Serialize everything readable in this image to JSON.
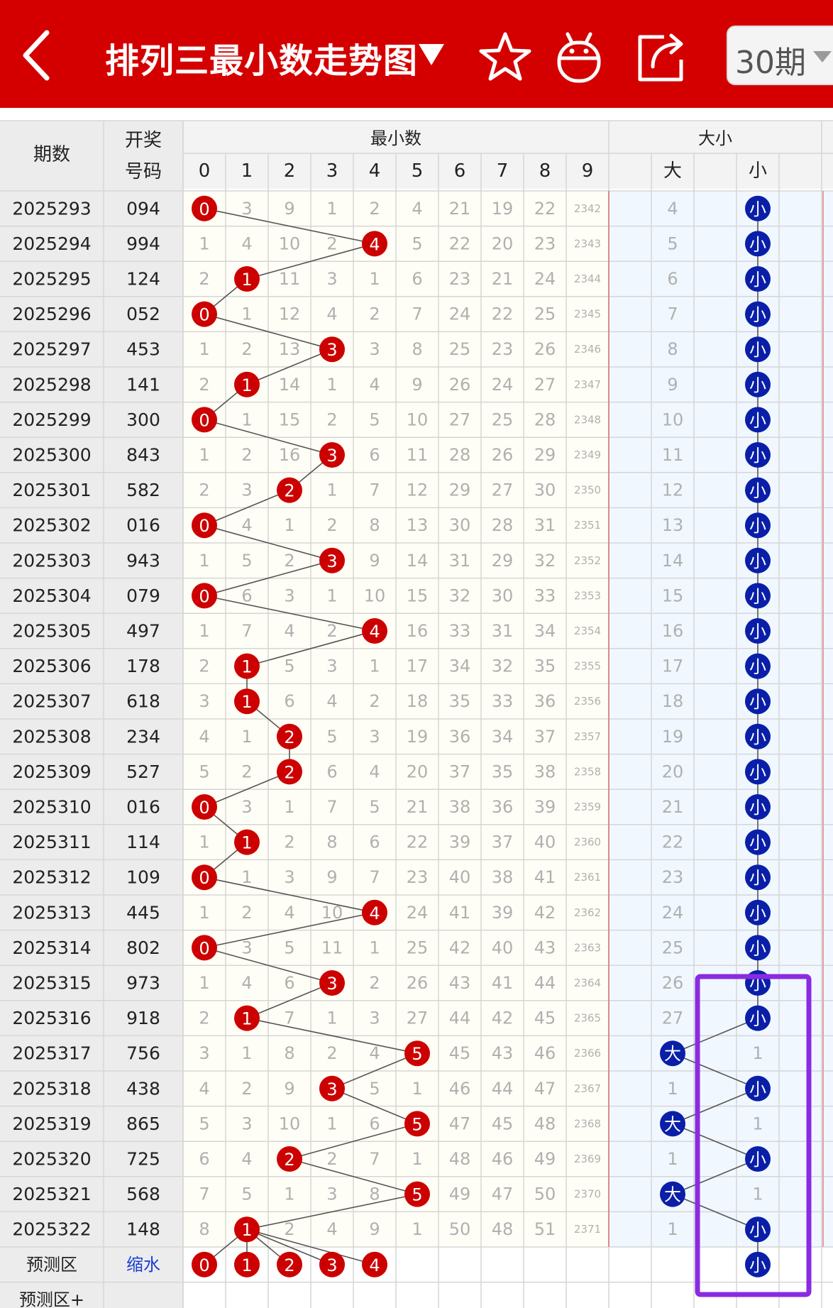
{
  "header": {
    "title": "排列三最小数走势图",
    "title_caret_icon": "triangle-down-icon",
    "back_icon": "chevron-left-icon",
    "icons": [
      "star-icon",
      "robot-icon",
      "share-icon"
    ],
    "period_select": "30期",
    "period_caret_icon": "triangle-down-icon",
    "bg_color": "#d40000"
  },
  "table": {
    "header": {
      "col_period": "期数",
      "col_number": "开奖\n号码",
      "group_min": "最小数",
      "group_size": "大小",
      "digits": [
        "0",
        "1",
        "2",
        "3",
        "4",
        "5",
        "6",
        "7",
        "8",
        "9"
      ],
      "size_labels": [
        "",
        "大",
        "",
        "小",
        ""
      ]
    },
    "rows": [
      {
        "period": "2025293",
        "number": "094",
        "min": 0,
        "miss": [
          "0",
          "3",
          "9",
          "1",
          "2",
          "4",
          "21",
          "19",
          "22",
          "2342"
        ],
        "size": "小",
        "big_miss": "4"
      },
      {
        "period": "2025294",
        "number": "994",
        "min": 4,
        "miss": [
          "1",
          "4",
          "10",
          "2",
          "4",
          "5",
          "22",
          "20",
          "23",
          "2343"
        ],
        "size": "小",
        "big_miss": "5"
      },
      {
        "period": "2025295",
        "number": "124",
        "min": 1,
        "miss": [
          "2",
          "1",
          "11",
          "3",
          "1",
          "6",
          "23",
          "21",
          "24",
          "2344"
        ],
        "size": "小",
        "big_miss": "6"
      },
      {
        "period": "2025296",
        "number": "052",
        "min": 0,
        "miss": [
          "0",
          "1",
          "12",
          "4",
          "2",
          "7",
          "24",
          "22",
          "25",
          "2345"
        ],
        "size": "小",
        "big_miss": "7"
      },
      {
        "period": "2025297",
        "number": "453",
        "min": 3,
        "miss": [
          "1",
          "2",
          "13",
          "3",
          "3",
          "8",
          "25",
          "23",
          "26",
          "2346"
        ],
        "size": "小",
        "big_miss": "8"
      },
      {
        "period": "2025298",
        "number": "141",
        "min": 1,
        "miss": [
          "2",
          "1",
          "14",
          "1",
          "4",
          "9",
          "26",
          "24",
          "27",
          "2347"
        ],
        "size": "小",
        "big_miss": "9"
      },
      {
        "period": "2025299",
        "number": "300",
        "min": 0,
        "miss": [
          "0",
          "1",
          "15",
          "2",
          "5",
          "10",
          "27",
          "25",
          "28",
          "2348"
        ],
        "size": "小",
        "big_miss": "10"
      },
      {
        "period": "2025300",
        "number": "843",
        "min": 3,
        "miss": [
          "1",
          "2",
          "16",
          "3",
          "6",
          "11",
          "28",
          "26",
          "29",
          "2349"
        ],
        "size": "小",
        "big_miss": "11"
      },
      {
        "period": "2025301",
        "number": "582",
        "min": 2,
        "miss": [
          "2",
          "3",
          "2",
          "1",
          "7",
          "12",
          "29",
          "27",
          "30",
          "2350"
        ],
        "size": "小",
        "big_miss": "12"
      },
      {
        "period": "2025302",
        "number": "016",
        "min": 0,
        "miss": [
          "0",
          "4",
          "1",
          "2",
          "8",
          "13",
          "30",
          "28",
          "31",
          "2351"
        ],
        "size": "小",
        "big_miss": "13"
      },
      {
        "period": "2025303",
        "number": "943",
        "min": 3,
        "miss": [
          "1",
          "5",
          "2",
          "3",
          "9",
          "14",
          "31",
          "29",
          "32",
          "2352"
        ],
        "size": "小",
        "big_miss": "14"
      },
      {
        "period": "2025304",
        "number": "079",
        "min": 0,
        "miss": [
          "0",
          "6",
          "3",
          "1",
          "10",
          "15",
          "32",
          "30",
          "33",
          "2353"
        ],
        "size": "小",
        "big_miss": "15"
      },
      {
        "period": "2025305",
        "number": "497",
        "min": 4,
        "miss": [
          "1",
          "7",
          "4",
          "2",
          "4",
          "16",
          "33",
          "31",
          "34",
          "2354"
        ],
        "size": "小",
        "big_miss": "16"
      },
      {
        "period": "2025306",
        "number": "178",
        "min": 1,
        "miss": [
          "2",
          "1",
          "5",
          "3",
          "1",
          "17",
          "34",
          "32",
          "35",
          "2355"
        ],
        "size": "小",
        "big_miss": "17"
      },
      {
        "period": "2025307",
        "number": "618",
        "min": 1,
        "miss": [
          "3",
          "1",
          "6",
          "4",
          "2",
          "18",
          "35",
          "33",
          "36",
          "2356"
        ],
        "size": "小",
        "big_miss": "18"
      },
      {
        "period": "2025308",
        "number": "234",
        "min": 2,
        "miss": [
          "4",
          "1",
          "2",
          "5",
          "3",
          "19",
          "36",
          "34",
          "37",
          "2357"
        ],
        "size": "小",
        "big_miss": "19"
      },
      {
        "period": "2025309",
        "number": "527",
        "min": 2,
        "miss": [
          "5",
          "2",
          "2",
          "6",
          "4",
          "20",
          "37",
          "35",
          "38",
          "2358"
        ],
        "size": "小",
        "big_miss": "20"
      },
      {
        "period": "2025310",
        "number": "016",
        "min": 0,
        "miss": [
          "0",
          "3",
          "1",
          "7",
          "5",
          "21",
          "38",
          "36",
          "39",
          "2359"
        ],
        "size": "小",
        "big_miss": "21"
      },
      {
        "period": "2025311",
        "number": "114",
        "min": 1,
        "miss": [
          "1",
          "1",
          "2",
          "8",
          "6",
          "22",
          "39",
          "37",
          "40",
          "2360"
        ],
        "size": "小",
        "big_miss": "22"
      },
      {
        "period": "2025312",
        "number": "109",
        "min": 0,
        "miss": [
          "0",
          "1",
          "3",
          "9",
          "7",
          "23",
          "40",
          "38",
          "41",
          "2361"
        ],
        "size": "小",
        "big_miss": "23"
      },
      {
        "period": "2025313",
        "number": "445",
        "min": 4,
        "miss": [
          "1",
          "2",
          "4",
          "10",
          "4",
          "24",
          "41",
          "39",
          "42",
          "2362"
        ],
        "size": "小",
        "big_miss": "24"
      },
      {
        "period": "2025314",
        "number": "802",
        "min": 0,
        "miss": [
          "0",
          "3",
          "5",
          "11",
          "1",
          "25",
          "42",
          "40",
          "43",
          "2363"
        ],
        "size": "小",
        "big_miss": "25"
      },
      {
        "period": "2025315",
        "number": "973",
        "min": 3,
        "miss": [
          "1",
          "4",
          "6",
          "3",
          "2",
          "26",
          "43",
          "41",
          "44",
          "2364"
        ],
        "size": "小",
        "big_miss": "26"
      },
      {
        "period": "2025316",
        "number": "918",
        "min": 1,
        "miss": [
          "2",
          "1",
          "7",
          "1",
          "3",
          "27",
          "44",
          "42",
          "45",
          "2365"
        ],
        "size": "小",
        "big_miss": "27"
      },
      {
        "period": "2025317",
        "number": "756",
        "min": 5,
        "miss": [
          "3",
          "1",
          "8",
          "2",
          "4",
          "5",
          "45",
          "43",
          "46",
          "2366"
        ],
        "size": "大",
        "small_miss": "1"
      },
      {
        "period": "2025318",
        "number": "438",
        "min": 3,
        "miss": [
          "4",
          "2",
          "9",
          "3",
          "5",
          "1",
          "46",
          "44",
          "47",
          "2367"
        ],
        "size": "小",
        "big_miss": "1"
      },
      {
        "period": "2025319",
        "number": "865",
        "min": 5,
        "miss": [
          "5",
          "3",
          "10",
          "1",
          "6",
          "5",
          "47",
          "45",
          "48",
          "2368"
        ],
        "size": "大",
        "small_miss": "1"
      },
      {
        "period": "2025320",
        "number": "725",
        "min": 2,
        "miss": [
          "6",
          "4",
          "2",
          "2",
          "7",
          "1",
          "48",
          "46",
          "49",
          "2369"
        ],
        "size": "小",
        "big_miss": "1"
      },
      {
        "period": "2025321",
        "number": "568",
        "min": 5,
        "miss": [
          "7",
          "5",
          "1",
          "3",
          "8",
          "5",
          "49",
          "47",
          "50",
          "2370"
        ],
        "size": "大",
        "small_miss": "1"
      },
      {
        "period": "2025322",
        "number": "148",
        "min": 1,
        "miss": [
          "8",
          "1",
          "2",
          "4",
          "9",
          "1",
          "50",
          "48",
          "51",
          "2371"
        ],
        "size": "小",
        "big_miss": "1"
      }
    ],
    "predict": {
      "label": "预测区",
      "shrink_label": "缩水",
      "balls": [
        "0",
        "1",
        "2",
        "3",
        "4"
      ],
      "size_ball": "小"
    },
    "predict_plus": {
      "label": "预测区+"
    },
    "colors": {
      "red_ball": "#cc0000",
      "blue_ball": "#0a1fa8",
      "miss_text": "#b0b0b0",
      "cell_bg": "#fffef6",
      "size_bg": "#f1f7ff",
      "highlight": "#8a2be2"
    }
  }
}
